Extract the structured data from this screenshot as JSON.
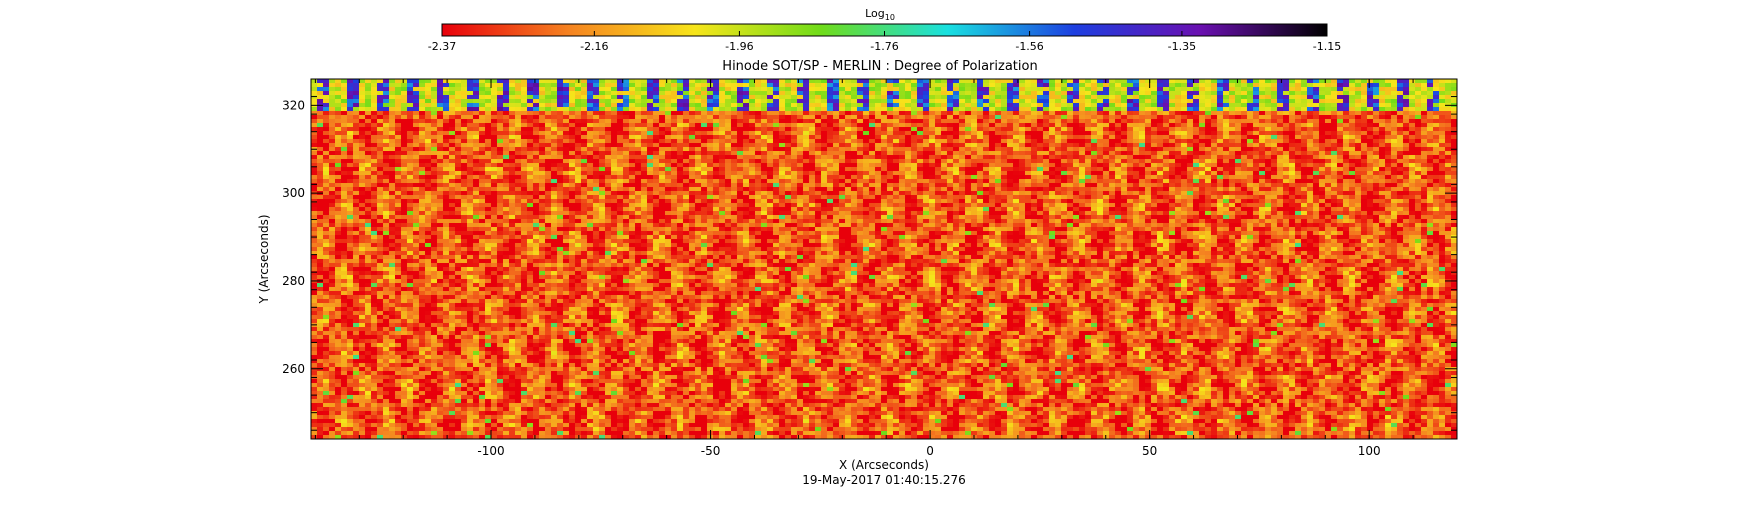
{
  "chart_data": {
    "type": "heatmap",
    "title": "Hinode SOT/SP - MERLIN : Degree of Polarization",
    "xlabel": "X (Arcseconds)",
    "ylabel": "Y (Arcseconds)",
    "timestamp": "19-May-2017 01:40:15.276",
    "xlim": [
      -141,
      120
    ],
    "ylim": [
      244,
      326
    ],
    "x_ticks": [
      -100,
      -50,
      0,
      50,
      100
    ],
    "x_tick_labels": [
      "-100",
      "-50",
      "0",
      "50",
      "100"
    ],
    "y_ticks": [
      260,
      280,
      300,
      320
    ],
    "y_tick_labels": [
      "260",
      "280",
      "300",
      "320"
    ],
    "colorbar": {
      "label_base": "Log",
      "label_sub": "10",
      "placement": "top",
      "range": [
        -2.37,
        -1.15
      ],
      "tick_values": [
        -2.37,
        -2.16,
        -1.96,
        -1.76,
        -1.56,
        -1.35,
        -1.15
      ],
      "tick_labels": [
        "-2.37",
        "-2.16",
        "-1.96",
        "-1.76",
        "-1.56",
        "-1.35",
        "-1.15"
      ],
      "colors": [
        "#e8000b",
        "#f58220",
        "#f7e51a",
        "#6fdc19",
        "#19e0e0",
        "#1d3fe0",
        "#6a10b0",
        "#000000"
      ]
    },
    "field_description_values": {
      "dominant_level": -2.2,
      "band_top_y_range": [
        319,
        326
      ],
      "band_level": -1.45
    }
  }
}
